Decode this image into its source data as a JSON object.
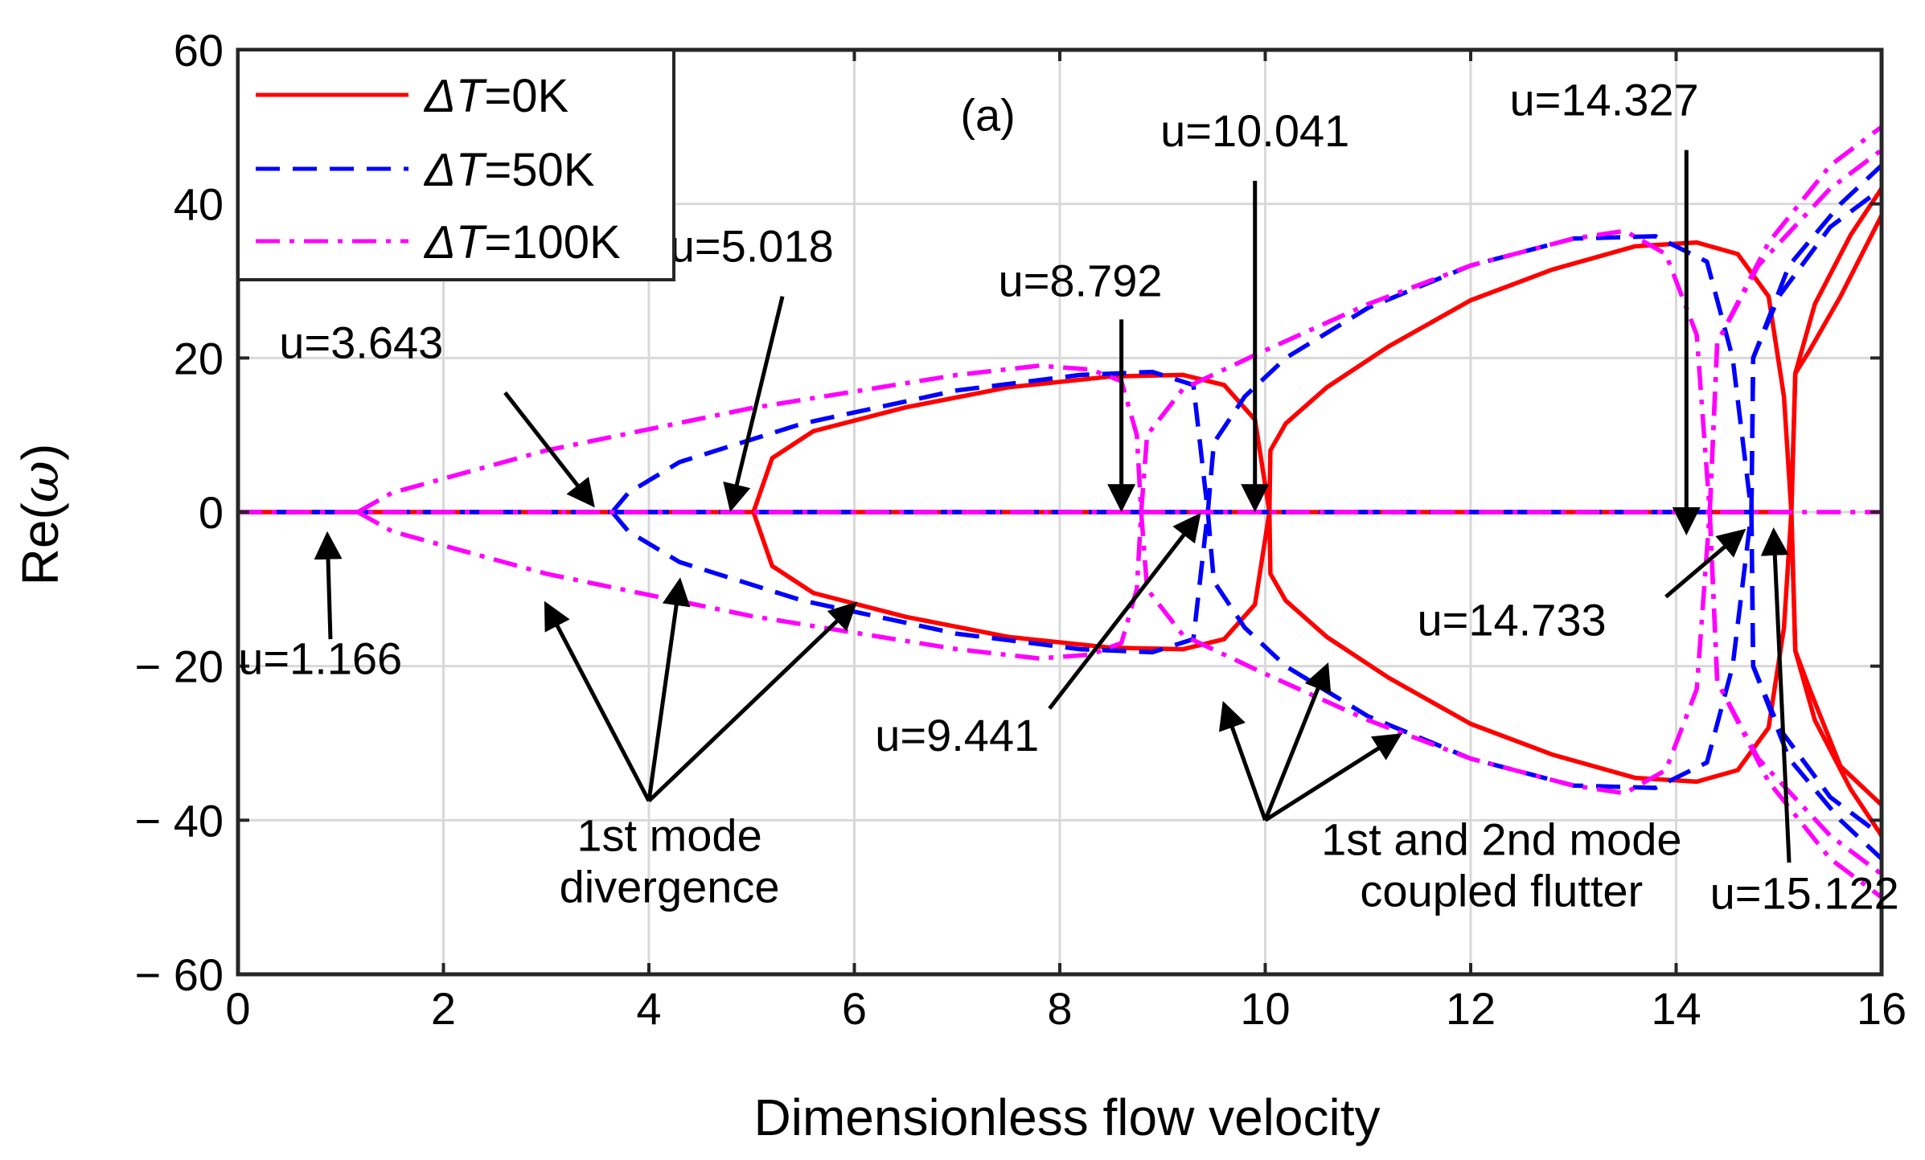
{
  "chart_data": {
    "type": "line",
    "panel_label": "(a)",
    "xlabel": "Dimensionless flow velocity",
    "ylabel_prefix": "Re(",
    "ylabel_symbol": "ω",
    "ylabel_suffix": ")",
    "xlim": [
      0,
      16
    ],
    "ylim": [
      -60,
      60
    ],
    "xticks": [
      0,
      2,
      4,
      6,
      8,
      10,
      12,
      14,
      16
    ],
    "yticks": [
      60,
      40,
      20,
      0,
      -20,
      -40,
      -60
    ],
    "ytick_labels": [
      "60",
      "40",
      "20",
      "0",
      "− 20",
      "− 40",
      "− 60"
    ],
    "grid": true,
    "legend_position": "top-left",
    "series": [
      {
        "name": "ΔT=0K",
        "legend_symbol": "ΔT",
        "legend_value": "=0K",
        "color": "#ff0000",
        "style": "solid",
        "critical_velocities": [
          5.018,
          10.041,
          15.122
        ],
        "curves": [
          [
            [
              0,
              0
            ],
            [
              5.018,
              0
            ],
            [
              10.041,
              0
            ]
          ],
          [
            [
              5.018,
              0
            ],
            [
              5.2,
              7
            ],
            [
              5.6,
              10.5
            ],
            [
              6.5,
              13.6
            ],
            [
              7.5,
              16.2
            ],
            [
              8.5,
              17.6
            ],
            [
              9.2,
              17.8
            ],
            [
              9.6,
              16.5
            ],
            [
              9.9,
              12
            ],
            [
              10.041,
              0
            ]
          ],
          [
            [
              5.018,
              0
            ],
            [
              5.2,
              -7
            ],
            [
              5.6,
              -10.5
            ],
            [
              6.5,
              -13.6
            ],
            [
              7.5,
              -16.2
            ],
            [
              8.5,
              -17.6
            ],
            [
              9.2,
              -17.8
            ],
            [
              9.6,
              -16.5
            ],
            [
              9.9,
              -12
            ],
            [
              10.041,
              0
            ]
          ],
          [
            [
              10.041,
              0
            ],
            [
              10.05,
              8
            ],
            [
              10.2,
              11.5
            ],
            [
              10.6,
              16.2
            ],
            [
              11.2,
              21.5
            ],
            [
              12,
              27.5
            ],
            [
              12.8,
              31.5
            ],
            [
              13.6,
              34.5
            ],
            [
              14.2,
              35
            ],
            [
              14.6,
              33.5
            ],
            [
              14.9,
              28
            ],
            [
              15.05,
              15
            ],
            [
              15.122,
              0
            ]
          ],
          [
            [
              10.041,
              0
            ],
            [
              10.05,
              -8
            ],
            [
              10.2,
              -11.5
            ],
            [
              10.6,
              -16.2
            ],
            [
              11.2,
              -21.5
            ],
            [
              12,
              -27.5
            ],
            [
              12.8,
              -31.5
            ],
            [
              13.6,
              -34.5
            ],
            [
              14.2,
              -35
            ],
            [
              14.6,
              -33.5
            ],
            [
              14.9,
              -28
            ],
            [
              15.05,
              -15
            ],
            [
              15.122,
              0
            ]
          ],
          [
            [
              10.041,
              0
            ],
            [
              15.122,
              0
            ]
          ],
          [
            [
              15.122,
              0
            ],
            [
              15.16,
              18
            ],
            [
              15.3,
              21
            ],
            [
              15.6,
              28
            ],
            [
              16,
              38.5
            ]
          ],
          [
            [
              15.122,
              0
            ],
            [
              15.16,
              18
            ],
            [
              15.35,
              27
            ],
            [
              15.7,
              36
            ],
            [
              16,
              42
            ]
          ],
          [
            [
              15.122,
              0
            ],
            [
              15.16,
              -18
            ],
            [
              15.3,
              -23
            ],
            [
              15.6,
              -33
            ],
            [
              16,
              -38
            ]
          ],
          [
            [
              15.122,
              0
            ],
            [
              15.16,
              -18
            ],
            [
              15.35,
              -27
            ],
            [
              15.7,
              -36
            ],
            [
              16,
              -42
            ]
          ]
        ]
      },
      {
        "name": "ΔT=50K",
        "legend_symbol": "ΔT",
        "legend_value": "=50K",
        "color": "#0000ff",
        "style": "dashed",
        "critical_velocities": [
          3.643,
          9.441,
          14.733
        ],
        "curves": [
          [
            [
              0,
              0
            ],
            [
              3.643,
              0
            ],
            [
              9.441,
              0
            ]
          ],
          [
            [
              3.643,
              0
            ],
            [
              3.8,
              2.5
            ],
            [
              4.3,
              6.5
            ],
            [
              5.5,
              11.5
            ],
            [
              7,
              15.8
            ],
            [
              8.2,
              17.8
            ],
            [
              8.9,
              18.2
            ],
            [
              9.3,
              16.5
            ],
            [
              9.441,
              0
            ]
          ],
          [
            [
              3.643,
              0
            ],
            [
              3.8,
              -2.5
            ],
            [
              4.3,
              -6.5
            ],
            [
              5.5,
              -11.5
            ],
            [
              7,
              -15.8
            ],
            [
              8.2,
              -17.8
            ],
            [
              8.9,
              -18.2
            ],
            [
              9.3,
              -16.5
            ],
            [
              9.441,
              0
            ]
          ],
          [
            [
              9.441,
              0
            ],
            [
              9.5,
              9
            ],
            [
              9.8,
              15
            ],
            [
              10.2,
              20
            ],
            [
              11,
              26.5
            ],
            [
              12,
              32
            ],
            [
              13,
              35.5
            ],
            [
              13.8,
              35.8
            ],
            [
              14.3,
              32.5
            ],
            [
              14.55,
              20
            ],
            [
              14.733,
              0
            ]
          ],
          [
            [
              9.441,
              0
            ],
            [
              9.5,
              -9
            ],
            [
              9.8,
              -15
            ],
            [
              10.2,
              -20
            ],
            [
              11,
              -26.5
            ],
            [
              12,
              -32
            ],
            [
              13,
              -35.5
            ],
            [
              13.8,
              -35.8
            ],
            [
              14.3,
              -32.5
            ],
            [
              14.55,
              -20
            ],
            [
              14.733,
              0
            ]
          ],
          [
            [
              9.441,
              0
            ],
            [
              14.733,
              0
            ]
          ],
          [
            [
              14.733,
              0
            ],
            [
              14.75,
              20
            ],
            [
              15,
              28
            ],
            [
              15.5,
              37
            ],
            [
              16,
              42
            ]
          ],
          [
            [
              14.733,
              0
            ],
            [
              14.75,
              20
            ],
            [
              15.1,
              32
            ],
            [
              15.6,
              40
            ],
            [
              16,
              45
            ]
          ],
          [
            [
              14.733,
              0
            ],
            [
              14.75,
              -20
            ],
            [
              15,
              -28
            ],
            [
              15.5,
              -37
            ],
            [
              16,
              -42
            ]
          ],
          [
            [
              14.733,
              0
            ],
            [
              14.75,
              -20
            ],
            [
              15.1,
              -32
            ],
            [
              15.6,
              -40
            ],
            [
              16,
              -45
            ]
          ]
        ]
      },
      {
        "name": "ΔT=100K",
        "legend_symbol": "ΔT",
        "legend_value": "=100K",
        "color": "#ff00ff",
        "style": "dashdot",
        "critical_velocities": [
          1.166,
          8.792,
          14.327
        ],
        "curves": [
          [
            [
              0,
              0
            ],
            [
              1.166,
              0
            ],
            [
              8.792,
              0
            ]
          ],
          [
            [
              1.166,
              0
            ],
            [
              1.5,
              2.5
            ],
            [
              3,
              8
            ],
            [
              5,
              13.5
            ],
            [
              7,
              17.8
            ],
            [
              7.8,
              19
            ],
            [
              8.3,
              18.5
            ],
            [
              8.6,
              17
            ],
            [
              8.75,
              10
            ],
            [
              8.792,
              0
            ]
          ],
          [
            [
              1.166,
              0
            ],
            [
              1.5,
              -2.5
            ],
            [
              3,
              -8
            ],
            [
              5,
              -13.5
            ],
            [
              7,
              -17.8
            ],
            [
              7.8,
              -19
            ],
            [
              8.3,
              -18.5
            ],
            [
              8.6,
              -17
            ],
            [
              8.75,
              -10
            ],
            [
              8.792,
              0
            ]
          ],
          [
            [
              8.792,
              0
            ],
            [
              8.85,
              10
            ],
            [
              9.2,
              16
            ],
            [
              10,
              21
            ],
            [
              11,
              27
            ],
            [
              12,
              32
            ],
            [
              13,
              35.5
            ],
            [
              13.5,
              36.5
            ],
            [
              13.9,
              33.5
            ],
            [
              14.2,
              23
            ],
            [
              14.327,
              0
            ]
          ],
          [
            [
              8.792,
              0
            ],
            [
              8.85,
              -10
            ],
            [
              9.2,
              -16
            ],
            [
              10,
              -21
            ],
            [
              11,
              -27
            ],
            [
              12,
              -32
            ],
            [
              13,
              -35.5
            ],
            [
              13.5,
              -36.5
            ],
            [
              13.9,
              -33.5
            ],
            [
              14.2,
              -23
            ],
            [
              14.327,
              0
            ]
          ],
          [
            [
              8.792,
              0
            ],
            [
              16,
              0
            ]
          ],
          [
            [
              14.327,
              0
            ],
            [
              14.4,
              22
            ],
            [
              14.8,
              32
            ],
            [
              15.5,
              42
            ],
            [
              16,
              47
            ]
          ],
          [
            [
              14.327,
              0
            ],
            [
              14.4,
              22
            ],
            [
              14.9,
              35
            ],
            [
              15.5,
              45
            ],
            [
              16,
              50
            ]
          ],
          [
            [
              14.327,
              0
            ],
            [
              14.4,
              -22
            ],
            [
              14.8,
              -32
            ],
            [
              15.5,
              -42
            ],
            [
              16,
              -47
            ]
          ],
          [
            [
              14.327,
              0
            ],
            [
              14.4,
              -22
            ],
            [
              14.9,
              -35
            ],
            [
              15.5,
              -45
            ],
            [
              16,
              -50
            ]
          ]
        ]
      }
    ],
    "annotations": [
      {
        "lines": [
          "u=1.166"
        ],
        "x": 1.166,
        "y": 0,
        "text_at": [
          0.8,
          -21
        ],
        "arrow_from": [
          0.9,
          -16.5
        ],
        "arrow_to": [
          0.87,
          -3
        ]
      },
      {
        "lines": [
          "u=3.643"
        ],
        "x": 3.643,
        "y": 0,
        "text_at": [
          1.2,
          20
        ],
        "arrow_from": [
          2.6,
          15.5
        ],
        "arrow_to": [
          3.45,
          1
        ]
      },
      {
        "lines": [
          "u=5.018"
        ],
        "x": 5.018,
        "y": 0,
        "text_at": [
          5.0,
          32.5
        ],
        "arrow_from": [
          5.3,
          28
        ],
        "arrow_to": [
          4.8,
          0.5
        ]
      },
      {
        "lines": [
          "u=8.792"
        ],
        "x": 8.792,
        "y": 0,
        "text_at": [
          8.2,
          28
        ],
        "arrow_from": [
          8.6,
          25
        ],
        "arrow_to": [
          8.6,
          0.5
        ]
      },
      {
        "lines": [
          "u=10.041"
        ],
        "x": 10.041,
        "y": 0,
        "text_at": [
          9.9,
          47.5
        ],
        "arrow_from": [
          9.9,
          43
        ],
        "arrow_to": [
          9.9,
          0.5
        ]
      },
      {
        "lines": [
          "u=9.441"
        ],
        "x": 9.441,
        "y": 0,
        "text_at": [
          7.0,
          -31
        ],
        "arrow_from": [
          7.9,
          -25.5
        ],
        "arrow_to": [
          9.35,
          -0.5
        ]
      },
      {
        "lines": [
          "u=14.327"
        ],
        "x": 14.327,
        "y": 0,
        "text_at": [
          13.3,
          51.5
        ],
        "arrow_from": [
          14.1,
          47
        ],
        "arrow_to": [
          14.1,
          -2.5
        ]
      },
      {
        "lines": [
          "u=14.733"
        ],
        "x": 14.733,
        "y": 0,
        "text_at": [
          12.4,
          -16
        ],
        "arrow_from": [
          13.9,
          -11
        ],
        "arrow_to": [
          14.65,
          -2.5
        ]
      },
      {
        "lines": [
          "u=15.122"
        ],
        "x": 15.122,
        "y": 0,
        "text_at": [
          15.25,
          -51.5
        ],
        "arrow_from": [
          15.1,
          -45.5
        ],
        "arrow_to": [
          14.95,
          -2.5
        ]
      },
      {
        "lines": [
          "1st mode",
          "divergence"
        ],
        "text_at": [
          4.2,
          -44
        ],
        "arrow_from": [
          4.0,
          -37.5
        ],
        "arrow_to": [
          [
            3.0,
            -12
          ],
          [
            4.3,
            -9
          ],
          [
            6.0,
            -12
          ]
        ]
      },
      {
        "lines": [
          "1st and 2nd mode",
          "coupled  flutter"
        ],
        "text_at": [
          12.3,
          -44.5
        ],
        "arrow_from": [
          10.0,
          -40
        ],
        "arrow_to": [
          [
            9.6,
            -25
          ],
          [
            10.6,
            -20
          ],
          [
            11.3,
            -29
          ]
        ]
      }
    ],
    "panel_label_at": [
      7.3,
      49.5
    ]
  }
}
